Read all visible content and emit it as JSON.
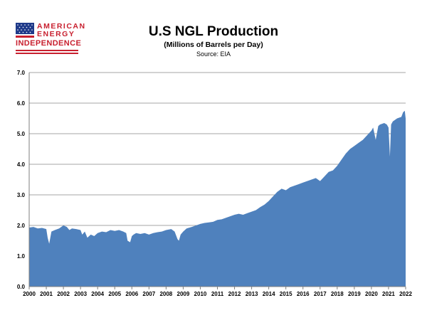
{
  "logo": {
    "line1": "AMERICAN",
    "line2": "ENERGY",
    "line3": "INDEPENDENCE",
    "colors": {
      "red": "#c8202f",
      "blue": "#1f3a8a"
    }
  },
  "chart_data": {
    "type": "area",
    "title": "U.S NGL Production",
    "subtitle": "(Millions of Barrels per Day)",
    "source": "Source: EIA",
    "xlabel": "",
    "ylabel": "",
    "xlim": [
      2000,
      2022
    ],
    "ylim": [
      0,
      7
    ],
    "ytick_labels": [
      "0.0",
      "1.0",
      "2.0",
      "3.0",
      "4.0",
      "5.0",
      "6.0",
      "7.0"
    ],
    "xtick_labels": [
      "2000",
      "2001",
      "2002",
      "2003",
      "2004",
      "2005",
      "2006",
      "2007",
      "2008",
      "2009",
      "2010",
      "2011",
      "2012",
      "2013",
      "2014",
      "2015",
      "2016",
      "2017",
      "2018",
      "2019",
      "2020",
      "2021",
      "2022"
    ],
    "grid": true,
    "fill_color": "#4f81bd",
    "series": [
      {
        "x": [
          2000.0,
          2000.25,
          2000.5,
          2000.75,
          2001.0,
          2001.08,
          2001.17,
          2001.3,
          2001.5,
          2001.75,
          2002.0,
          2002.2,
          2002.35,
          2002.5,
          2002.75,
          2003.0,
          2003.1,
          2003.25,
          2003.4,
          2003.6,
          2003.8,
          2004.0,
          2004.25,
          2004.5,
          2004.75,
          2005.0,
          2005.25,
          2005.5,
          2005.67,
          2005.75,
          2005.9,
          2006.0,
          2006.1,
          2006.25,
          2006.5,
          2006.75,
          2007.0,
          2007.25,
          2007.5,
          2007.75,
          2008.0,
          2008.3,
          2008.5,
          2008.67,
          2008.75,
          2008.85,
          2009.0,
          2009.2,
          2009.5,
          2009.75,
          2010.0,
          2010.25,
          2010.5,
          2010.75,
          2011.0,
          2011.25,
          2011.5,
          2011.75,
          2012.0,
          2012.25,
          2012.5,
          2012.75,
          2013.0,
          2013.25,
          2013.5,
          2013.75,
          2014.0,
          2014.25,
          2014.5,
          2014.75,
          2015.0,
          2015.25,
          2015.5,
          2015.75,
          2016.0,
          2016.25,
          2016.5,
          2016.75,
          2017.0,
          2017.25,
          2017.5,
          2017.75,
          2018.0,
          2018.25,
          2018.5,
          2018.75,
          2019.0,
          2019.25,
          2019.5,
          2019.75,
          2020.0,
          2020.1,
          2020.25,
          2020.4,
          2020.5,
          2020.75,
          2020.9,
          2021.0,
          2021.08,
          2021.15,
          2021.25,
          2021.5,
          2021.75,
          2021.85,
          2021.95,
          2022.0
        ],
        "y": [
          1.93,
          1.95,
          1.9,
          1.92,
          1.88,
          1.6,
          1.4,
          1.8,
          1.85,
          1.9,
          2.0,
          1.95,
          1.85,
          1.9,
          1.88,
          1.85,
          1.7,
          1.8,
          1.6,
          1.7,
          1.65,
          1.75,
          1.8,
          1.78,
          1.85,
          1.82,
          1.85,
          1.8,
          1.75,
          1.5,
          1.45,
          1.65,
          1.7,
          1.75,
          1.72,
          1.75,
          1.7,
          1.75,
          1.78,
          1.8,
          1.85,
          1.88,
          1.8,
          1.55,
          1.5,
          1.7,
          1.8,
          1.9,
          1.95,
          2.0,
          2.05,
          2.08,
          2.1,
          2.12,
          2.18,
          2.2,
          2.25,
          2.3,
          2.35,
          2.38,
          2.35,
          2.4,
          2.45,
          2.5,
          2.6,
          2.68,
          2.8,
          2.95,
          3.1,
          3.2,
          3.15,
          3.25,
          3.3,
          3.35,
          3.4,
          3.45,
          3.5,
          3.55,
          3.45,
          3.6,
          3.75,
          3.8,
          3.95,
          4.15,
          4.35,
          4.5,
          4.6,
          4.7,
          4.8,
          4.95,
          5.1,
          5.2,
          4.8,
          5.25,
          5.3,
          5.35,
          5.3,
          5.2,
          4.25,
          5.3,
          5.4,
          5.5,
          5.55,
          5.7,
          5.75,
          5.5
        ]
      }
    ]
  }
}
